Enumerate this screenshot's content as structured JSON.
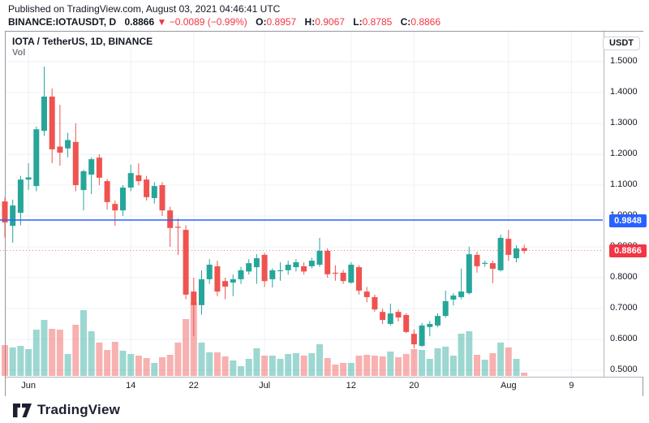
{
  "header": {
    "published": "Published on TradingView.com, August 03, 2021 04:46:41 UTC",
    "symbol": "BINANCE:IOTAUSDT, D",
    "last_price": "0.8866",
    "down_arrow": "▼",
    "change": "−0.0089 (−0.99%)",
    "o_label": "O:",
    "o_value": "0.8957",
    "h_label": "H:",
    "h_value": "0.9067",
    "l_label": "L:",
    "l_value": "0.8785",
    "c_label": "C:",
    "c_value": "0.8866"
  },
  "chart": {
    "title": "IOTA / TetherUS, 1D, BINANCE",
    "vol_label": "Vol",
    "currency_button": "USDT",
    "badge_blue_text": "0.9848",
    "badge_red_text": "0.8866"
  },
  "footer": {
    "brand": "TradingView"
  },
  "colors": {
    "up": "#26a69a",
    "down": "#ef5350",
    "vol_up": "rgba(38,166,154,0.45)",
    "vol_down": "rgba(239,83,80,0.45)",
    "grid": "#eef1f6",
    "blue_line": "rgba(41,98,255,0.75)",
    "badge_blue": "#2962ff",
    "badge_red": "#f23645",
    "dotted_red": "rgba(239,83,80,0.75)",
    "text_dark": "#131722"
  },
  "chart_data": {
    "type": "candlestick+volume",
    "title": "IOTA / TetherUS, 1D, BINANCE",
    "exchange": "BINANCE",
    "interval": "1D",
    "y_axis": {
      "min": 0.5,
      "max": 1.5,
      "step": 0.1
    },
    "y_ticks": [
      "1.5000",
      "1.4000",
      "1.3000",
      "1.2000",
      "1.1000",
      "1.0000",
      "0.9000",
      "0.8000",
      "0.7000",
      "0.6000",
      "0.5000"
    ],
    "x_ticks": [
      {
        "label": "Jun",
        "i": 3
      },
      {
        "label": "14",
        "i": 16
      },
      {
        "label": "22",
        "i": 24
      },
      {
        "label": "Jul",
        "i": 33
      },
      {
        "label": "12",
        "i": 44
      },
      {
        "label": "20",
        "i": 52
      },
      {
        "label": "Aug",
        "i": 64
      },
      {
        "label": "9",
        "i": 72
      }
    ],
    "price_lines": [
      {
        "price": 0.9848,
        "style": "solid",
        "color": "blue"
      },
      {
        "price": 0.8866,
        "style": "dotted",
        "color": "red"
      }
    ],
    "candles_format": [
      "open",
      "high",
      "low",
      "close",
      "volume_rel"
    ],
    "candles": [
      [
        1.047,
        1.06,
        0.93,
        0.979,
        38
      ],
      [
        0.968,
        1.053,
        0.913,
        1.034,
        35
      ],
      [
        1.01,
        1.13,
        0.97,
        1.118,
        37
      ],
      [
        1.118,
        1.171,
        1.084,
        1.125,
        33
      ],
      [
        1.097,
        1.29,
        1.08,
        1.281,
        57
      ],
      [
        1.276,
        1.484,
        1.26,
        1.387,
        69
      ],
      [
        1.387,
        1.413,
        1.171,
        1.216,
        58
      ],
      [
        1.225,
        1.36,
        1.163,
        1.205,
        57
      ],
      [
        1.219,
        1.27,
        1.19,
        1.246,
        27
      ],
      [
        1.24,
        1.3,
        1.08,
        1.1,
        63
      ],
      [
        1.084,
        1.15,
        1.018,
        1.145,
        81
      ],
      [
        1.134,
        1.19,
        1.071,
        1.184,
        55
      ],
      [
        1.189,
        1.2,
        1.1,
        1.124,
        41
      ],
      [
        1.113,
        1.12,
        1.021,
        1.045,
        32
      ],
      [
        1.039,
        1.05,
        0.968,
        1.018,
        42
      ],
      [
        1.018,
        1.1,
        1.0,
        1.092,
        31
      ],
      [
        1.092,
        1.166,
        1.08,
        1.139,
        27
      ],
      [
        1.132,
        1.171,
        1.1,
        1.113,
        25
      ],
      [
        1.118,
        1.13,
        1.05,
        1.061,
        22
      ],
      [
        1.058,
        1.11,
        1.04,
        1.097,
        16
      ],
      [
        1.1,
        1.11,
        1.0,
        1.018,
        23
      ],
      [
        1.018,
        1.03,
        0.9,
        0.961,
        26
      ],
      [
        0.965,
        0.992,
        0.874,
        0.963,
        41
      ],
      [
        0.955,
        0.97,
        0.73,
        0.745,
        70
      ],
      [
        0.755,
        0.8,
        0.61,
        0.711,
        90
      ],
      [
        0.711,
        0.824,
        0.68,
        0.795,
        41
      ],
      [
        0.795,
        0.86,
        0.78,
        0.842,
        29
      ],
      [
        0.837,
        0.855,
        0.74,
        0.755,
        29
      ],
      [
        0.789,
        0.8,
        0.73,
        0.771,
        24
      ],
      [
        0.784,
        0.81,
        0.74,
        0.795,
        19
      ],
      [
        0.795,
        0.835,
        0.78,
        0.824,
        12
      ],
      [
        0.82,
        0.86,
        0.81,
        0.847,
        21
      ],
      [
        0.834,
        0.876,
        0.78,
        0.863,
        34
      ],
      [
        0.874,
        0.88,
        0.77,
        0.789,
        25
      ],
      [
        0.795,
        0.83,
        0.768,
        0.824,
        25
      ],
      [
        0.822,
        0.85,
        0.79,
        0.824,
        21
      ],
      [
        0.824,
        0.855,
        0.81,
        0.842,
        27
      ],
      [
        0.834,
        0.86,
        0.82,
        0.85,
        28
      ],
      [
        0.837,
        0.85,
        0.81,
        0.82,
        25
      ],
      [
        0.837,
        0.865,
        0.83,
        0.855,
        28
      ],
      [
        0.842,
        0.929,
        0.835,
        0.887,
        39
      ],
      [
        0.887,
        0.895,
        0.8,
        0.811,
        22
      ],
      [
        0.816,
        0.84,
        0.79,
        0.814,
        14
      ],
      [
        0.816,
        0.825,
        0.78,
        0.789,
        16
      ],
      [
        0.784,
        0.85,
        0.78,
        0.842,
        16
      ],
      [
        0.834,
        0.84,
        0.745,
        0.758,
        25
      ],
      [
        0.755,
        0.77,
        0.72,
        0.737,
        26
      ],
      [
        0.737,
        0.745,
        0.69,
        0.697,
        25
      ],
      [
        0.689,
        0.7,
        0.65,
        0.663,
        24
      ],
      [
        0.65,
        0.716,
        0.645,
        0.684,
        30
      ],
      [
        0.689,
        0.697,
        0.658,
        0.671,
        23
      ],
      [
        0.679,
        0.685,
        0.62,
        0.624,
        27
      ],
      [
        0.618,
        0.632,
        0.571,
        0.584,
        33
      ],
      [
        0.579,
        0.653,
        0.575,
        0.645,
        32
      ],
      [
        0.64,
        0.66,
        0.61,
        0.65,
        21
      ],
      [
        0.645,
        0.685,
        0.64,
        0.676,
        34
      ],
      [
        0.676,
        0.758,
        0.67,
        0.724,
        36
      ],
      [
        0.729,
        0.75,
        0.71,
        0.742,
        25
      ],
      [
        0.737,
        0.829,
        0.73,
        0.755,
        52
      ],
      [
        0.75,
        0.9,
        0.745,
        0.876,
        55
      ],
      [
        0.874,
        0.884,
        0.816,
        0.837,
        26
      ],
      [
        0.845,
        0.855,
        0.835,
        0.848,
        20
      ],
      [
        0.847,
        0.855,
        0.782,
        0.829,
        28
      ],
      [
        0.824,
        0.939,
        0.82,
        0.929,
        41
      ],
      [
        0.926,
        0.955,
        0.855,
        0.874,
        35
      ],
      [
        0.863,
        0.905,
        0.85,
        0.895,
        21
      ],
      [
        0.8957,
        0.9067,
        0.8785,
        0.8866,
        4
      ]
    ]
  }
}
